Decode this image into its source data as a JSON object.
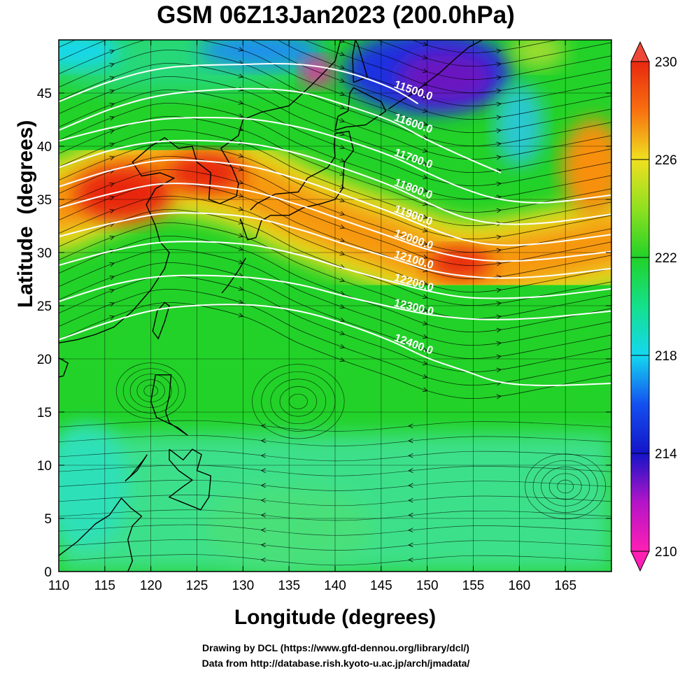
{
  "title": "GSM 06Z13Jan2023 (200.0hPa)",
  "xlabel": "Longitude (degrees)",
  "ylabel": "Latitude  (degrees)",
  "credit_line1": "Drawing by DCL (https://www.gfd-dennou.org/library/dcl/)",
  "credit_line2": "Data from http://database.rish.kyoto-u.ac.jp/arch/jmadata/",
  "chart_data": {
    "type": "heatmap",
    "title": "GSM 06Z13Jan2023 (200.0hPa)",
    "xlabel": "Longitude (degrees)",
    "ylabel": "Latitude  (degrees)",
    "xlim": [
      110,
      170
    ],
    "ylim": [
      0,
      50
    ],
    "x_ticks": [
      110,
      115,
      120,
      125,
      130,
      135,
      140,
      145,
      150,
      155,
      160,
      165
    ],
    "y_ticks": [
      0,
      5,
      10,
      15,
      20,
      25,
      30,
      35,
      40,
      45
    ],
    "grid": true,
    "colorbar": {
      "min": 210,
      "max": 230,
      "ticks": [
        210,
        214,
        218,
        222,
        226,
        230
      ],
      "extend": "both",
      "position": "right"
    },
    "colors": {
      "magenta": "#ff1fb4",
      "purple": "#6a14c0",
      "blue": "#1020d8",
      "cyan": "#14d8f0",
      "green": "#22d228",
      "yellow": "#f0e020",
      "orange": "#f89010",
      "red": "#e82810"
    },
    "contour_levels": [
      {
        "label": "11500.0",
        "points": [
          [
            110,
            44.2
          ],
          [
            116,
            46.2
          ],
          [
            122,
            47.4
          ],
          [
            130,
            47.7
          ],
          [
            136,
            47.7
          ],
          [
            141,
            47.0
          ],
          [
            146,
            45.5
          ],
          [
            149,
            44.0
          ]
        ]
      },
      {
        "label": "11600.0",
        "points": [
          [
            110,
            41.5
          ],
          [
            116,
            43.6
          ],
          [
            122,
            44.9
          ],
          [
            130,
            45.4
          ],
          [
            136,
            45.1
          ],
          [
            141,
            43.9
          ],
          [
            146,
            42.4
          ],
          [
            150,
            40.6
          ],
          [
            154,
            39.0
          ],
          [
            158,
            37.5
          ]
        ]
      },
      {
        "label": "11700.0",
        "points": [
          [
            110,
            40.5
          ],
          [
            116,
            41.8
          ],
          [
            122,
            42.6
          ],
          [
            130,
            42.6
          ],
          [
            136,
            41.8
          ],
          [
            141,
            40.6
          ],
          [
            146,
            39.1
          ],
          [
            150,
            37.5
          ],
          [
            154,
            36.0
          ],
          [
            158,
            35.0
          ],
          [
            163,
            34.7
          ],
          [
            170,
            35.4
          ]
        ]
      },
      {
        "label": "11800.0",
        "points": [
          [
            110,
            38.0
          ],
          [
            116,
            39.7
          ],
          [
            122,
            40.5
          ],
          [
            130,
            40.3
          ],
          [
            136,
            39.3
          ],
          [
            141,
            37.9
          ],
          [
            146,
            36.3
          ],
          [
            150,
            34.7
          ],
          [
            154,
            33.3
          ],
          [
            158,
            32.7
          ],
          [
            163,
            32.8
          ],
          [
            170,
            33.6
          ]
        ]
      },
      {
        "label": "11900.0",
        "points": [
          [
            110,
            36.2
          ],
          [
            116,
            37.8
          ],
          [
            122,
            38.7
          ],
          [
            130,
            38.2
          ],
          [
            136,
            36.9
          ],
          [
            141,
            35.4
          ],
          [
            146,
            33.8
          ],
          [
            150,
            32.4
          ],
          [
            154,
            31.2
          ],
          [
            158,
            30.7
          ],
          [
            163,
            30.9
          ],
          [
            170,
            31.7
          ]
        ]
      },
      {
        "label": "12000.0",
        "points": [
          [
            110,
            34.2
          ],
          [
            116,
            35.6
          ],
          [
            122,
            36.5
          ],
          [
            130,
            35.9
          ],
          [
            136,
            34.5
          ],
          [
            141,
            33.0
          ],
          [
            146,
            31.5
          ],
          [
            150,
            30.3
          ],
          [
            154,
            29.5
          ],
          [
            158,
            29.2
          ],
          [
            163,
            29.4
          ],
          [
            170,
            30.1
          ]
        ]
      },
      {
        "label": "12100.0",
        "points": [
          [
            110,
            31.5
          ],
          [
            116,
            32.8
          ],
          [
            122,
            33.7
          ],
          [
            130,
            33.4
          ],
          [
            136,
            32.2
          ],
          [
            141,
            30.8
          ],
          [
            146,
            29.5
          ],
          [
            150,
            28.4
          ],
          [
            154,
            27.8
          ],
          [
            158,
            27.6
          ],
          [
            163,
            27.8
          ],
          [
            170,
            28.5
          ]
        ]
      },
      {
        "label": "12200.0",
        "points": [
          [
            110,
            28.8
          ],
          [
            116,
            30.2
          ],
          [
            122,
            31.0
          ],
          [
            130,
            30.8
          ],
          [
            136,
            29.8
          ],
          [
            141,
            28.5
          ],
          [
            146,
            27.3
          ],
          [
            150,
            26.4
          ],
          [
            154,
            25.8
          ],
          [
            158,
            25.7
          ],
          [
            163,
            25.9
          ],
          [
            170,
            26.6
          ]
        ]
      },
      {
        "label": "12300.0",
        "points": [
          [
            110,
            25.4
          ],
          [
            116,
            27.0
          ],
          [
            122,
            27.8
          ],
          [
            130,
            27.7
          ],
          [
            136,
            27.0
          ],
          [
            141,
            25.9
          ],
          [
            146,
            24.9
          ],
          [
            150,
            24.2
          ],
          [
            154,
            23.8
          ],
          [
            158,
            23.7
          ],
          [
            163,
            23.9
          ],
          [
            170,
            24.5
          ]
        ]
      },
      {
        "label": "12400.0",
        "points": [
          [
            110,
            21.8
          ],
          [
            116,
            23.6
          ],
          [
            122,
            24.8
          ],
          [
            130,
            25.1
          ],
          [
            136,
            24.5
          ],
          [
            141,
            23.3
          ],
          [
            146,
            21.7
          ],
          [
            150,
            20.1
          ],
          [
            154,
            18.9
          ],
          [
            158,
            17.8
          ],
          [
            163,
            17.5
          ],
          [
            170,
            17.7
          ]
        ]
      }
    ],
    "warm_band_center": [
      [
        110,
        34.3
      ],
      [
        116,
        36.5
      ],
      [
        122,
        37.8
      ],
      [
        130,
        36.5
      ],
      [
        136,
        34.0
      ],
      [
        141,
        32.3
      ],
      [
        146,
        30.8
      ],
      [
        150,
        29.5
      ],
      [
        154,
        28.8
      ],
      [
        158,
        29.0
      ],
      [
        163,
        29.8
      ],
      [
        170,
        31.0
      ]
    ],
    "cold_core_center": [
      138,
      47
    ],
    "warm_patch_center": [
      168,
      38
    ]
  }
}
